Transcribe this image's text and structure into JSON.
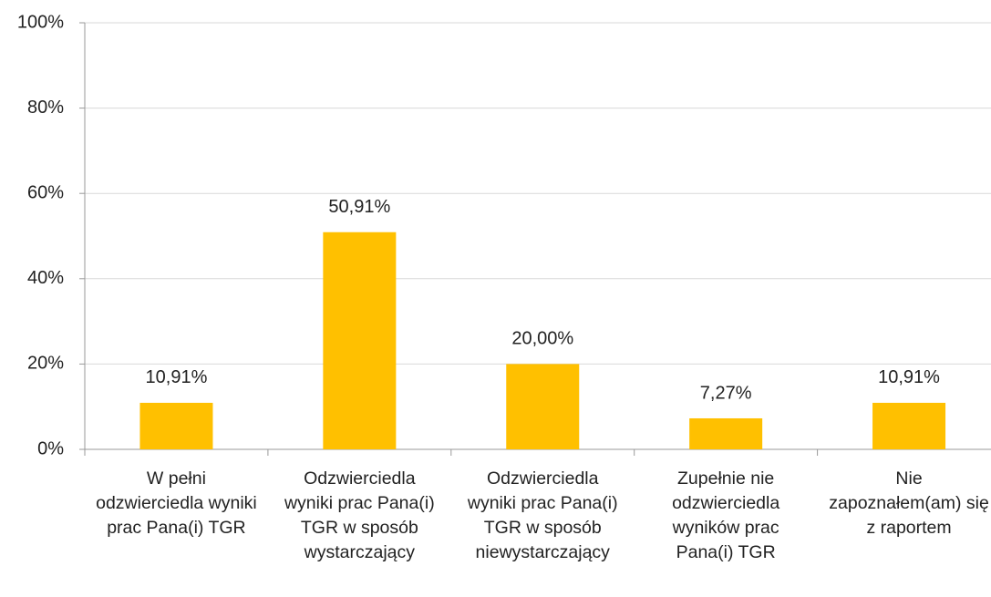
{
  "chart_data": {
    "type": "bar",
    "categories": [
      "W pełni odzwierciedla wyniki prac Pana(i) TGR",
      "Odzwierciedla wyniki prac Pana(i) TGR w sposób wystarczający",
      "Odzwierciedla wyniki prac Pana(i) TGR w sposób niewystarczający",
      "Zupełnie nie odzwierciedla wyników prac Pana(i) TGR",
      "Nie zapoznałem(am) się z raportem"
    ],
    "values": [
      10.91,
      50.91,
      20.0,
      7.27,
      10.91
    ],
    "value_labels": [
      "10,91%",
      "50,91%",
      "20,00%",
      "7,27%",
      "10,91%"
    ],
    "color": "#ffc000",
    "ylim": [
      0,
      100
    ],
    "yticks": [
      {
        "value": 0,
        "label": "0%"
      },
      {
        "value": 20,
        "label": "20%"
      },
      {
        "value": 40,
        "label": "40%"
      },
      {
        "value": 60,
        "label": "60%"
      },
      {
        "value": 80,
        "label": "80%"
      },
      {
        "value": 100,
        "label": "100%"
      }
    ],
    "grid": true
  }
}
